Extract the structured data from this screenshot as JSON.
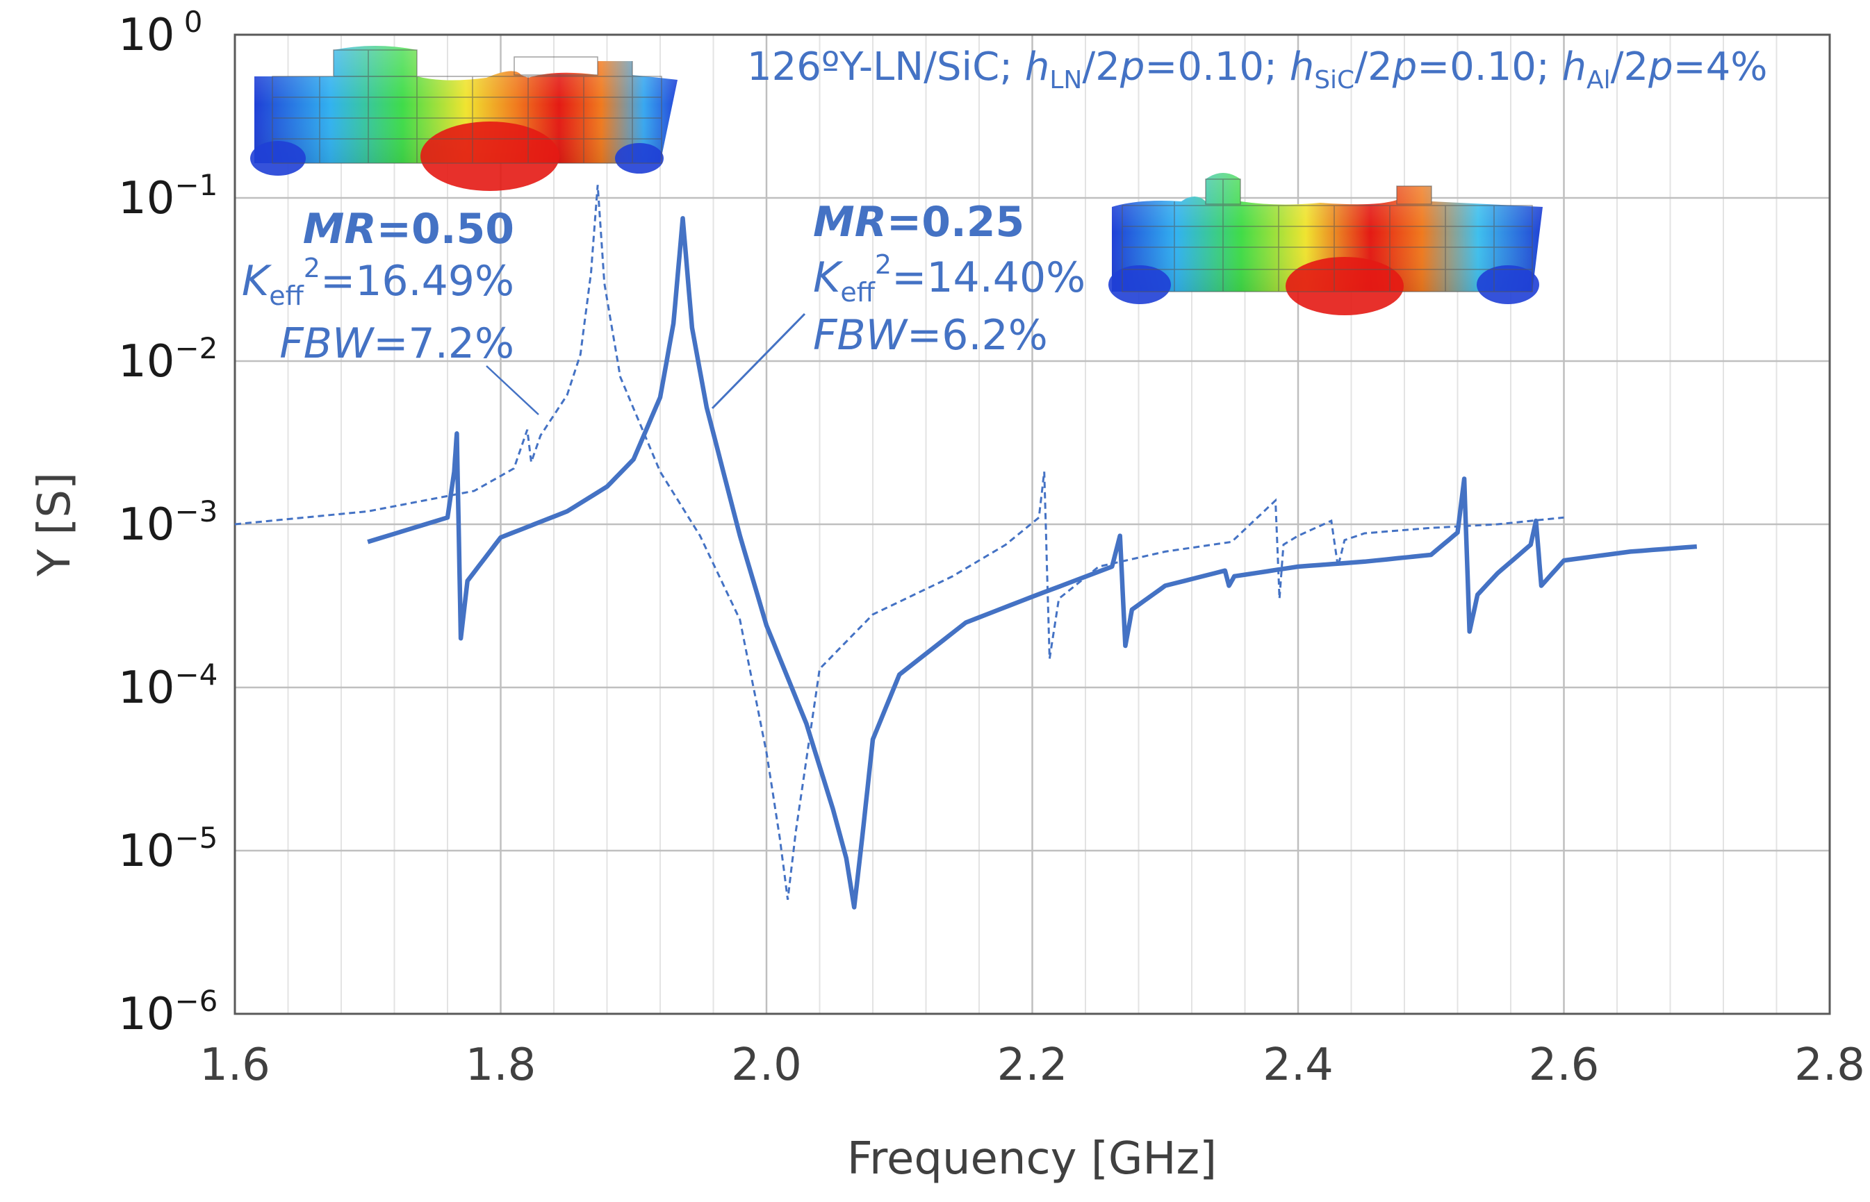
{
  "chart_data": {
    "type": "line",
    "title": "",
    "subtitle": "126ºY-LN/SiC; hLN/2p=0.10; hSiC/2p=0.10; hAl/2p=4%",
    "subtitle_parts": {
      "stack": "126ºY-LN/SiC; ",
      "p1": "h",
      "p1sub": "LN",
      "p1rest": "/2",
      "p1p": "p",
      "p1val": "=0.10; ",
      "p2": "h",
      "p2sub": "SiC",
      "p2rest": "/2",
      "p2p": "p",
      "p2val": "=0.10; ",
      "p3": "h",
      "p3sub": "Al",
      "p3rest": "/2",
      "p3p": "p",
      "p3val": "=4%"
    },
    "xlabel": "Frequency [GHz]",
    "ylabel": "Y [S]",
    "xlim": [
      1.6,
      2.8
    ],
    "ylim": [
      1e-06,
      1
    ],
    "yscale": "log",
    "x_ticks": [
      "1.6",
      "1.8",
      "2.0",
      "2.2",
      "2.4",
      "2.6",
      "2.8"
    ],
    "y_ticks": [
      {
        "base": "10",
        "exp": " 0"
      },
      {
        "base": "10",
        "exp": "−1"
      },
      {
        "base": "10",
        "exp": "−2"
      },
      {
        "base": "10",
        "exp": "−3"
      },
      {
        "base": "10",
        "exp": "−4"
      },
      {
        "base": "10",
        "exp": "−5"
      },
      {
        "base": "10",
        "exp": "−6"
      }
    ],
    "grid": true,
    "color": "#4472c4",
    "series": [
      {
        "name": "MR=0.25",
        "style": "solid",
        "x": [
          1.7,
          1.76,
          1.765,
          1.767,
          1.77,
          1.775,
          1.8,
          1.85,
          1.88,
          1.9,
          1.92,
          1.93,
          1.937,
          1.944,
          1.955,
          1.98,
          2.0,
          2.03,
          2.05,
          2.06,
          2.066,
          2.072,
          2.08,
          2.1,
          2.15,
          2.2,
          2.26,
          2.266,
          2.27,
          2.275,
          2.3,
          2.345,
          2.348,
          2.352,
          2.4,
          2.45,
          2.5,
          2.52,
          2.525,
          2.529,
          2.535,
          2.55,
          2.575,
          2.579,
          2.583,
          2.6,
          2.65,
          2.7
        ],
        "values": [
          0.00078,
          0.0011,
          0.0021,
          0.0036,
          0.0002,
          0.00045,
          0.00083,
          0.0012,
          0.0017,
          0.0025,
          0.006,
          0.017,
          0.075,
          0.016,
          0.0052,
          0.00085,
          0.00024,
          6e-05,
          1.8e-05,
          9e-06,
          4.5e-06,
          1.2e-05,
          4.8e-05,
          0.00012,
          0.00025,
          0.00036,
          0.00055,
          0.00085,
          0.00018,
          0.0003,
          0.00042,
          0.00052,
          0.00042,
          0.00048,
          0.00055,
          0.00059,
          0.00065,
          0.00089,
          0.0019,
          0.00022,
          0.00037,
          0.0005,
          0.00075,
          0.00105,
          0.00042,
          0.0006,
          0.00068,
          0.00073
        ]
      },
      {
        "name": "MR=0.50",
        "style": "dashed",
        "x": [
          1.6,
          1.7,
          1.78,
          1.81,
          1.82,
          1.823,
          1.83,
          1.85,
          1.86,
          1.868,
          1.873,
          1.878,
          1.89,
          1.92,
          1.95,
          1.98,
          2.0,
          2.01,
          2.016,
          2.022,
          2.04,
          2.08,
          2.14,
          2.18,
          2.205,
          2.209,
          2.213,
          2.22,
          2.25,
          2.3,
          2.35,
          2.383,
          2.386,
          2.389,
          2.4,
          2.425,
          2.43,
          2.435,
          2.45,
          2.5,
          2.55,
          2.6
        ],
        "values": [
          0.001,
          0.0012,
          0.0016,
          0.0022,
          0.0038,
          0.0024,
          0.0035,
          0.0062,
          0.011,
          0.035,
          0.12,
          0.03,
          0.008,
          0.0021,
          0.00085,
          0.00026,
          4e-05,
          1.2e-05,
          5e-06,
          1.3e-05,
          0.00013,
          0.00028,
          0.00048,
          0.00075,
          0.0011,
          0.0021,
          0.00015,
          0.00035,
          0.00055,
          0.00068,
          0.00078,
          0.0014,
          0.00035,
          0.00075,
          0.00085,
          0.00105,
          0.00055,
          0.0008,
          0.00088,
          0.00095,
          0.001,
          0.0011
        ]
      }
    ],
    "annotations": {
      "mr050": {
        "label": "MR",
        "value": "=0.50",
        "k_label": "K",
        "k_sub": "eff",
        "k_sup": "2",
        "k_value": "=16.49%",
        "fbw_label": "FBW",
        "fbw_value": "=7.2%"
      },
      "mr025": {
        "label": "MR",
        "value": "=0.25",
        "k_label": "K",
        "k_sub": "eff",
        "k_sup": "2",
        "k_value": "=14.40%",
        "fbw_label": "FBW",
        "fbw_value": "=6.2%"
      }
    }
  }
}
